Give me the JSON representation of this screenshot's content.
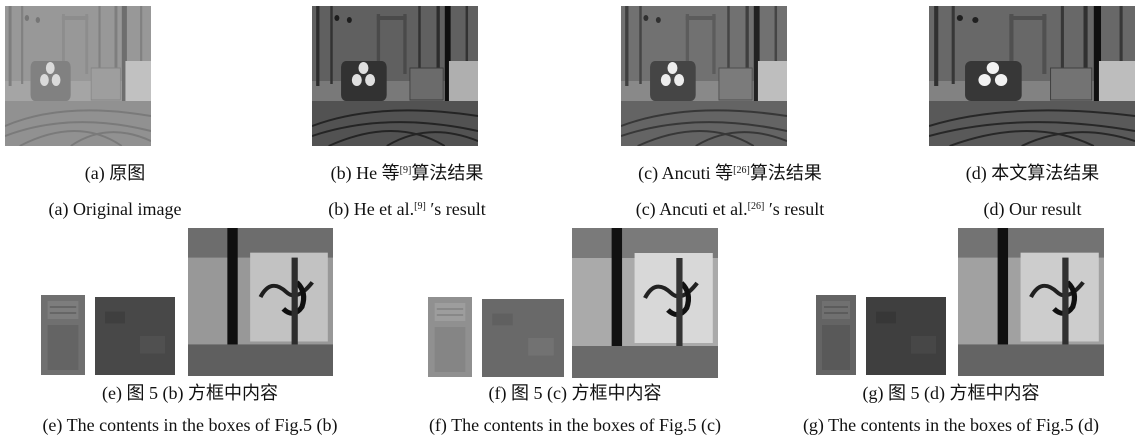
{
  "top_row": [
    {
      "zh": "(a) 原图",
      "en": "(a) Original image",
      "tone": "hazy"
    },
    {
      "zh_pre": "(b) He 等",
      "zh_ref": "[9]",
      "zh_post": "算法结果",
      "en_pre": "(b) He et al.",
      "en_ref": "[9]",
      "en_post": " ′s result",
      "tone": "dark"
    },
    {
      "zh_pre": "(c) Ancuti 等",
      "zh_ref": "[26]",
      "zh_post": "算法结果",
      "en_pre": "(c) Ancuti et al.",
      "en_ref": "[26]",
      "en_post": " ′s result",
      "tone": "medium"
    },
    {
      "zh": "(d) 本文算法结果",
      "en": "(d) Our result",
      "tone": "contrast"
    }
  ],
  "bottom_row": [
    {
      "zh": "(e) 图 5 (b) 方框中内容",
      "en": "(e) The contents in the boxes of Fig.5 (b)"
    },
    {
      "zh": "(f) 图 5 (c) 方框中内容",
      "en": "(f) The contents in the boxes of Fig.5 (c)"
    },
    {
      "zh": "(g) 图 5 (d) 方框中内容",
      "en": "(g) The contents in the boxes of Fig.5 (d)"
    }
  ]
}
